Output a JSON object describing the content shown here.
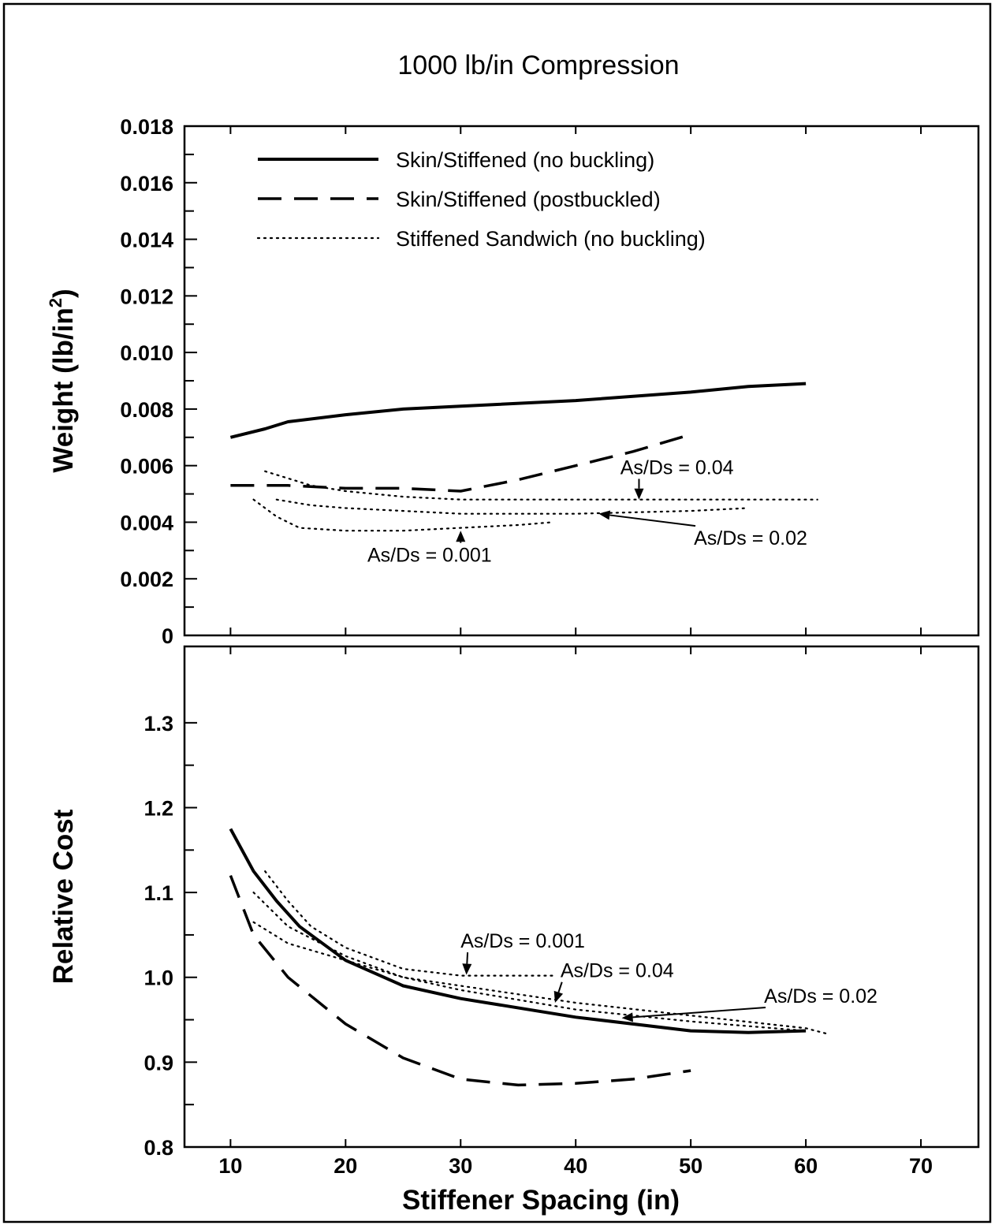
{
  "chart_data": {
    "title": "1000 lb/in Compression",
    "xlabel": "Stiffener Spacing (in)",
    "xlim": [
      6,
      75
    ],
    "xticks": [
      10,
      20,
      30,
      40,
      50,
      60,
      70
    ],
    "legend": [
      {
        "label": "Skin/Stiffened (no buckling)",
        "style": "solid"
      },
      {
        "label": "Skin/Stiffened (postbuckled)",
        "style": "dashed"
      },
      {
        "label": "Stiffened Sandwich (no buckling)",
        "style": "dotted"
      }
    ],
    "legend_position": "top-left",
    "panels": [
      {
        "type": "line",
        "ylabel": "Weight (lb/in",
        "ylabel_sup": "2",
        "ylabel_close": ")",
        "ylim": [
          0,
          0.018
        ],
        "yticks": [
          "0",
          "0.002",
          "0.004",
          "0.006",
          "0.008",
          "0.010",
          "0.012",
          "0.014",
          "0.016",
          "0.018"
        ],
        "series": [
          {
            "name": "Skin/Stiffened (no buckling)",
            "style": "solid",
            "x": [
              10,
              13,
              15,
              20,
              25,
              30,
              40,
              50,
              55,
              60
            ],
            "y": [
              0.007,
              0.0073,
              0.00755,
              0.0078,
              0.008,
              0.0081,
              0.0083,
              0.0086,
              0.0088,
              0.0089
            ]
          },
          {
            "name": "Skin/Stiffened (postbuckled)",
            "style": "dashed",
            "x": [
              10,
              15,
              20,
              25,
              30,
              35,
              40,
              45,
              50
            ],
            "y": [
              0.0053,
              0.0053,
              0.0052,
              0.0052,
              0.0051,
              0.0055,
              0.006,
              0.0065,
              0.0071
            ]
          },
          {
            "name": "As/Ds = 0.04",
            "style": "dotted",
            "x": [
              13,
              17,
              20,
              25,
              30,
              40,
              50,
              61
            ],
            "y": [
              0.0058,
              0.0053,
              0.0051,
              0.0049,
              0.0048,
              0.0048,
              0.0048,
              0.0048
            ]
          },
          {
            "name": "As/Ds = 0.02",
            "style": "dotted",
            "x": [
              14,
              17,
              20,
              25,
              30,
              40,
              50,
              55
            ],
            "y": [
              0.0048,
              0.0046,
              0.0045,
              0.0044,
              0.0043,
              0.0043,
              0.0044,
              0.0045
            ]
          },
          {
            "name": "As/Ds = 0.001",
            "style": "dotted",
            "x": [
              12,
              14,
              16,
              20,
              25,
              30,
              35,
              38
            ],
            "y": [
              0.0048,
              0.0042,
              0.0038,
              0.0037,
              0.0037,
              0.0038,
              0.0039,
              0.004
            ]
          }
        ],
        "annotations": [
          {
            "text": "As/Ds = 0.04",
            "tx": 48.8,
            "ty": 0.0057,
            "ax": 45.5,
            "ay": 0.0048
          },
          {
            "text": "As/Ds = 0.02",
            "tx": 55.2,
            "ty": 0.0032,
            "ax": 42.0,
            "ay": 0.0043
          },
          {
            "text": "As/Ds = 0.001",
            "tx": 27.3,
            "ty": 0.0026,
            "ax": 30.0,
            "ay": 0.0037
          }
        ]
      },
      {
        "type": "line",
        "ylabel": "Relative Cost",
        "ylim": [
          0.8,
          1.39
        ],
        "yticks": [
          "0.8",
          "0.9",
          "1.0",
          "1.1",
          "1.2",
          "1.3"
        ],
        "series": [
          {
            "name": "Skin/Stiffened (no buckling)",
            "style": "solid",
            "x": [
              10,
              12,
              14,
              16,
              18,
              20,
              25,
              30,
              40,
              50,
              55,
              60
            ],
            "y": [
              1.175,
              1.125,
              1.09,
              1.06,
              1.04,
              1.02,
              0.99,
              0.975,
              0.953,
              0.937,
              0.935,
              0.937
            ]
          },
          {
            "name": "Skin/Stiffened (postbuckled)",
            "style": "dashed",
            "x": [
              10,
              12,
              15,
              20,
              25,
              30,
              35,
              40,
              45,
              50
            ],
            "y": [
              1.12,
              1.05,
              1.0,
              0.945,
              0.905,
              0.88,
              0.873,
              0.875,
              0.88,
              0.89
            ]
          },
          {
            "name": "As/Ds = 0.001",
            "style": "dotted",
            "x": [
              13,
              15,
              17,
              20,
              25,
              30,
              38
            ],
            "y": [
              1.125,
              1.09,
              1.06,
              1.035,
              1.01,
              1.002,
              1.002
            ]
          },
          {
            "name": "As/Ds = 0.04",
            "style": "dotted",
            "x": [
              12,
              15,
              20,
              25,
              30,
              40,
              50,
              60,
              62
            ],
            "y": [
              1.1,
              1.06,
              1.025,
              1.0,
              0.99,
              0.97,
              0.955,
              0.94,
              0.933
            ]
          },
          {
            "name": "As/Ds = 0.02",
            "style": "dotted",
            "x": [
              12,
              15,
              20,
              25,
              30,
              40,
              50,
              60
            ],
            "y": [
              1.065,
              1.04,
              1.02,
              1.0,
              0.985,
              0.962,
              0.948,
              0.937
            ]
          }
        ],
        "annotations": [
          {
            "text": "As/Ds = 0.001",
            "tx": 35.4,
            "ty": 1.035,
            "ax": 30.5,
            "ay": 1.003
          },
          {
            "text": "As/Ds = 0.04",
            "tx": 43.6,
            "ty": 1.0,
            "ax": 38.2,
            "ay": 0.97
          },
          {
            "text": "As/Ds = 0.02",
            "tx": 61.3,
            "ty": 0.97,
            "ax": 44.0,
            "ay": 0.952
          }
        ]
      }
    ]
  }
}
